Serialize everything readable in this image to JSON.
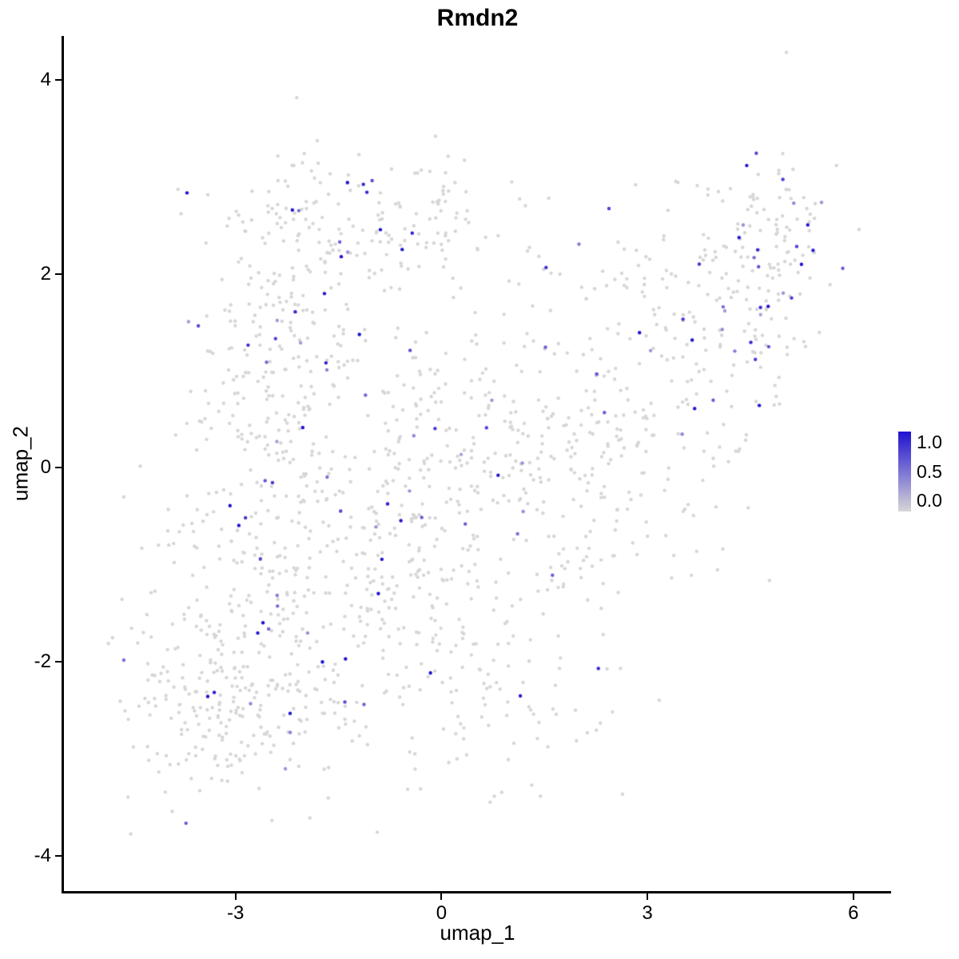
{
  "chart_data": {
    "type": "scatter",
    "title": "Rmdn2",
    "xlabel": "umap_1",
    "ylabel": "umap_2",
    "xlim": [
      -5.5,
      6.55
    ],
    "ylim": [
      -4.36,
      4.45
    ],
    "grid": false,
    "legend_position": "right",
    "x_ticks": {
      "values": [
        -3,
        0,
        3,
        6
      ],
      "labels": [
        "-3",
        "0",
        "3",
        "6"
      ]
    },
    "y_ticks": {
      "values": [
        4,
        2,
        0,
        -2,
        -4
      ],
      "labels": [
        "4",
        "2",
        "0",
        "-2",
        "-4"
      ]
    },
    "legend": {
      "labels": [
        "1.0",
        "0.5",
        "0.0"
      ],
      "low_color": "#d6d6d6",
      "high_color": "#2012d1"
    },
    "point": {
      "radius": 2.2,
      "zero_color": "#d6d6d6"
    },
    "expression": {
      "value_min": 0.25,
      "value_max": 1.25,
      "legend_max": 1.0
    },
    "seed": 42,
    "clusters": [
      {
        "cx": -2.9,
        "cy": -2.3,
        "sx": 0.75,
        "sy": 0.62,
        "n": 250,
        "expr": 0.06
      },
      {
        "cx": -2.35,
        "cy": -0.5,
        "sx": 0.75,
        "sy": 0.9,
        "n": 180,
        "expr": 0.07
      },
      {
        "cx": -2.45,
        "cy": 1.1,
        "sx": 0.7,
        "sy": 0.8,
        "n": 150,
        "expr": 0.1
      },
      {
        "cx": -1.5,
        "cy": 2.45,
        "sx": 0.85,
        "sy": 0.42,
        "n": 130,
        "expr": 0.1
      },
      {
        "cx": -0.05,
        "cy": 2.6,
        "sx": 0.65,
        "sy": 0.35,
        "n": 60,
        "expr": 0.06
      },
      {
        "cx": -0.6,
        "cy": -1.2,
        "sx": 0.85,
        "sy": 0.9,
        "n": 200,
        "expr": 0.07
      },
      {
        "cx": -0.2,
        "cy": 0.35,
        "sx": 0.8,
        "sy": 0.85,
        "n": 130,
        "expr": 0.05
      },
      {
        "cx": 0.9,
        "cy": -2.1,
        "sx": 0.8,
        "sy": 0.55,
        "n": 90,
        "expr": 0.05
      },
      {
        "cx": 1.6,
        "cy": 0.2,
        "sx": 0.85,
        "sy": 0.8,
        "n": 90,
        "expr": 0.03
      },
      {
        "cx": 2.2,
        "cy": -0.4,
        "sx": 0.7,
        "sy": 0.6,
        "n": 60,
        "expr": 0.03
      },
      {
        "cx": 2.6,
        "cy": 1.2,
        "sx": 0.8,
        "sy": 0.75,
        "n": 110,
        "expr": 0.04
      },
      {
        "cx": 3.6,
        "cy": 0.9,
        "sx": 0.7,
        "sy": 0.9,
        "n": 85,
        "expr": 0.04
      },
      {
        "cx": 4.6,
        "cy": 1.9,
        "sx": 0.55,
        "sy": 0.62,
        "n": 120,
        "expr": 0.16
      },
      {
        "cx": -4.05,
        "cy": -1.7,
        "sx": 0.38,
        "sy": 0.75,
        "n": 45,
        "expr": 0.02
      },
      {
        "cx": 5.0,
        "cy": 2.55,
        "sx": 0.38,
        "sy": 0.3,
        "n": 35,
        "expr": 0.1
      }
    ]
  }
}
